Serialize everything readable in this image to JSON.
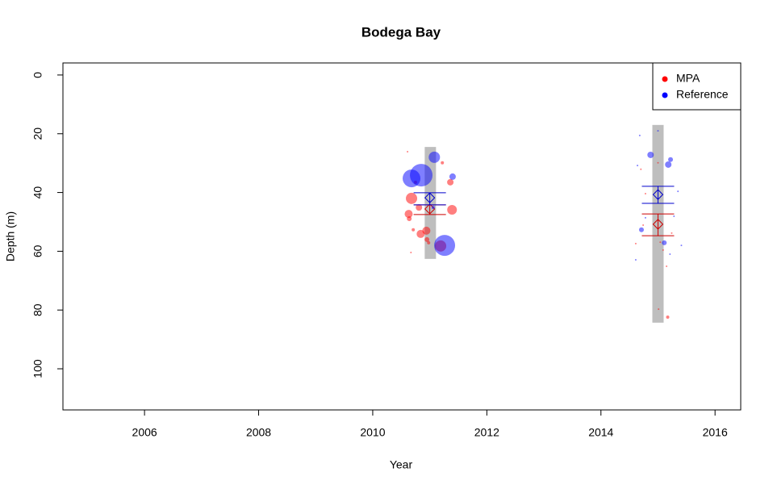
{
  "chart_data": {
    "type": "scatter",
    "title": "Bodega Bay",
    "x_label": "Year",
    "y_label": "Depth (m)",
    "xlim": [
      2004.57,
      2016.45
    ],
    "xticks": [
      2006,
      2008,
      2010,
      2012,
      2014,
      2016
    ],
    "ylim": [
      -4.1,
      114
    ],
    "yticks": [
      0,
      20,
      40,
      60,
      80,
      100
    ],
    "y_reversed": true,
    "legend_position": "top-right",
    "ranges": {
      "color": "#bebebe",
      "x": [
        2011.01,
        2015.0
      ],
      "min": [
        24.5,
        17.0
      ],
      "max": [
        62.6,
        84.3
      ]
    },
    "series": [
      {
        "name": "MPA",
        "color": "#ff0000",
        "alpha": 0.5,
        "summary_color": "#cc0000",
        "x": [
          2010.68,
          2010.63,
          2010.64,
          2010.81,
          2010.84,
          2010.94,
          2010.95,
          2010.98,
          2011.19,
          2011.39,
          2011.36,
          2011.22,
          2010.75,
          2010.71,
          2010.61,
          2010.67,
          2014.61,
          2014.74,
          2015.04,
          2015.09,
          2015.15,
          2015.17,
          2015.01,
          2015.0,
          2015.24,
          2014.78,
          2014.7
        ],
        "values": [
          42.0,
          47.3,
          48.9,
          45.1,
          54.1,
          53.0,
          56.0,
          57.1,
          58.2,
          45.9,
          36.5,
          29.9,
          36.5,
          52.7,
          26.1,
          60.4,
          57.4,
          51.1,
          56.9,
          59.6,
          65.1,
          82.4,
          79.7,
          29.9,
          53.8,
          40.4,
          32.1
        ],
        "sizes": [
          7,
          5,
          3,
          4,
          5,
          5,
          3,
          2,
          7,
          6,
          4,
          2,
          2,
          2,
          1,
          1,
          1,
          1,
          1,
          1,
          1,
          2,
          1,
          1,
          1,
          1,
          1
        ],
        "means": {
          "x": [
            2011.0,
            2015.0
          ],
          "mean": [
            45.6,
            50.8
          ],
          "lower": [
            44.2,
            47.3
          ],
          "upper": [
            47.5,
            54.7
          ]
        }
      },
      {
        "name": "Reference",
        "color": "#0000ff",
        "alpha": 0.5,
        "summary_color": "#0000cc",
        "x": [
          2010.68,
          2010.85,
          2011.08,
          2011.26,
          2011.4,
          2011.06,
          2014.87,
          2015.18,
          2015.22,
          2014.71,
          2014.68,
          2015.0,
          2015.11,
          2015.41,
          2014.61,
          2015.35,
          2014.78,
          2015.28,
          2014.64,
          2015.21
        ],
        "values": [
          35.2,
          34.1,
          28.0,
          58.0,
          34.6,
          45.1,
          27.2,
          30.5,
          28.8,
          52.7,
          20.6,
          19.0,
          57.1,
          58.0,
          62.9,
          39.6,
          48.6,
          48.1,
          30.8,
          61.0
        ],
        "sizes": [
          11,
          14,
          7,
          13,
          4,
          2,
          4,
          4,
          3,
          3,
          1,
          1,
          3,
          1,
          1,
          1,
          1,
          1,
          1,
          1
        ],
        "means": {
          "x": [
            2011.0,
            2015.0
          ],
          "mean": [
            41.8,
            40.7
          ],
          "lower": [
            40.1,
            37.9
          ],
          "upper": [
            44.2,
            43.7
          ]
        }
      }
    ]
  }
}
